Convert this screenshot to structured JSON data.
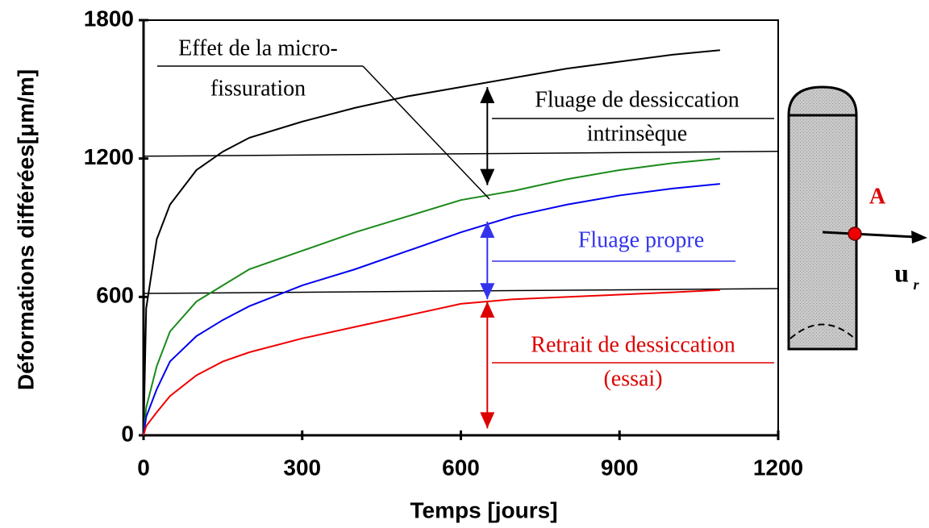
{
  "chart_data": {
    "type": "line",
    "y_label": "Déformations différées[μm/m]",
    "x_label": "Temps [jours]",
    "x": [
      0,
      5,
      25,
      50,
      100,
      150,
      200,
      300,
      400,
      500,
      600,
      700,
      800,
      900,
      1000,
      1090
    ],
    "series": [
      {
        "color": "#000000",
        "values": [
          0,
          550,
          850,
          1000,
          1150,
          1230,
          1290,
          1360,
          1420,
          1470,
          1510,
          1550,
          1590,
          1620,
          1650,
          1670
        ]
      },
      {
        "color": "#1a8a1a",
        "values": [
          0,
          120,
          300,
          450,
          580,
          650,
          720,
          800,
          880,
          950,
          1020,
          1060,
          1110,
          1150,
          1180,
          1200
        ]
      },
      {
        "color": "#0000ee",
        "values": [
          0,
          80,
          200,
          320,
          430,
          500,
          560,
          650,
          720,
          800,
          880,
          950,
          1000,
          1040,
          1070,
          1090
        ]
      },
      {
        "color": "#ee0000",
        "values": [
          0,
          40,
          100,
          170,
          260,
          320,
          360,
          420,
          470,
          520,
          570,
          590,
          600,
          610,
          620,
          630
        ]
      }
    ],
    "xlim": [
      0,
      1200
    ],
    "xticks": [
      0,
      300,
      600,
      900,
      1200
    ],
    "ylim": [
      0,
      1800
    ],
    "yticks": [
      0,
      600,
      1200,
      1800
    ],
    "hlines": [
      1210,
      615
    ],
    "arrows": [
      {
        "x": 650,
        "from": 1510,
        "to": 1085,
        "color": "#000000"
      },
      {
        "x": 650,
        "from": 926,
        "to": 590,
        "color": "#3333ee"
      },
      {
        "x": 650,
        "from": 580,
        "to": 30,
        "color": "#dd0000"
      }
    ],
    "annotations": [
      {
        "lines": [
          "Effet de la micro-",
          "fissuration"
        ],
        "color": "#000000"
      },
      {
        "lines": [
          "Fluage de dessiccation",
          "intrinsèque"
        ],
        "color": "#000000"
      },
      {
        "lines": [
          "Fluage propre"
        ],
        "color": "#3333ee"
      },
      {
        "lines": [
          "Retrait de dessiccation",
          "(essai)"
        ],
        "color": "#dd0000"
      }
    ]
  },
  "diagram": {
    "point_label": "A",
    "vector_label": "u",
    "vector_subscript": "r"
  }
}
